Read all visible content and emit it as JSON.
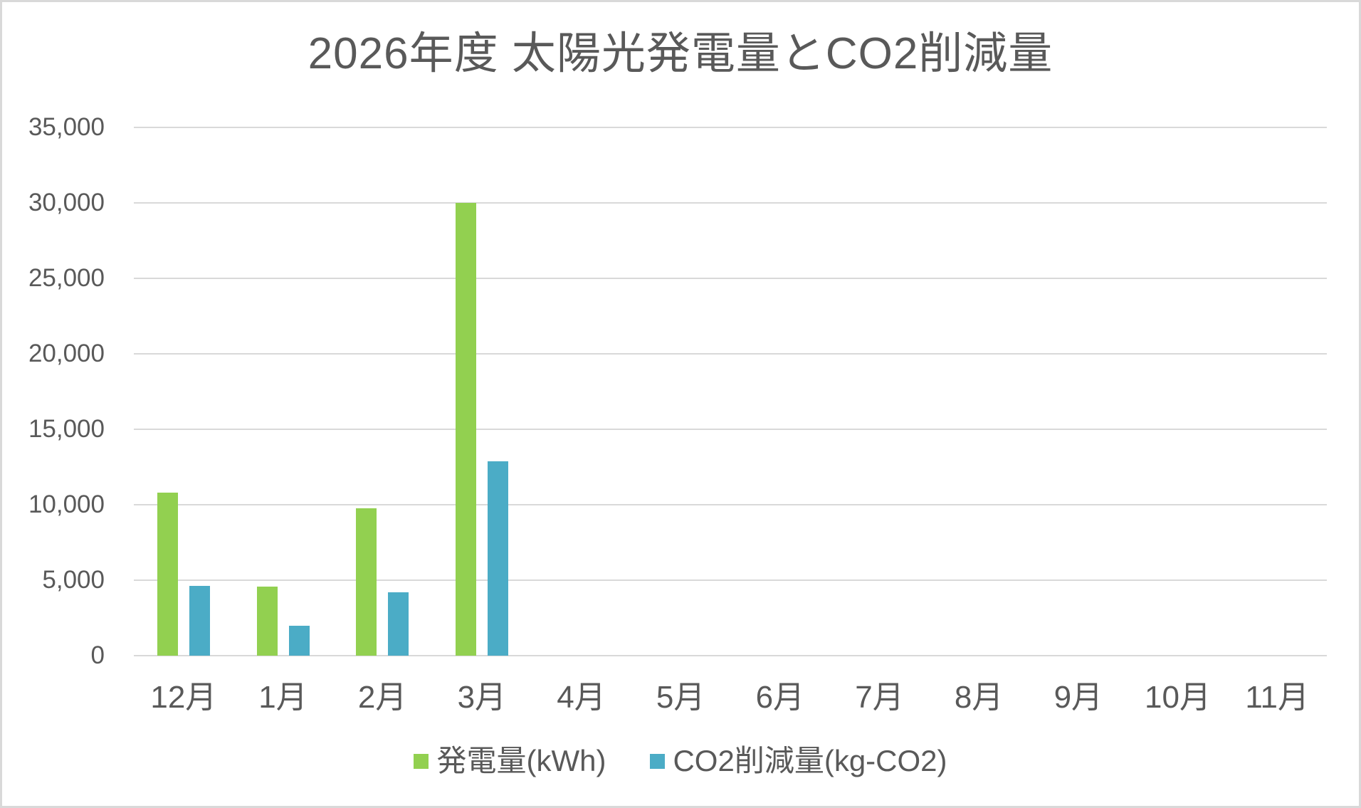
{
  "title": "2026年度 太陽光発電量とCO2削減量",
  "chart_data": {
    "type": "bar",
    "title": "2026年度 太陽光発電量とCO2削減量",
    "categories": [
      "12月",
      "1月",
      "2月",
      "3月",
      "4月",
      "5月",
      "6月",
      "7月",
      "8月",
      "9月",
      "10月",
      "11月"
    ],
    "series": [
      {
        "key": "generation",
        "name": "発電量(kWh)",
        "color": "#92D050",
        "values": [
          10800,
          4560,
          9750,
          30000,
          0,
          0,
          0,
          0,
          0,
          0,
          0,
          0
        ]
      },
      {
        "key": "co2",
        "name": "CO2削減量(kg-CO2)",
        "color": "#4BACC6",
        "values": [
          4644,
          1961,
          4193,
          12900,
          0,
          0,
          0,
          0,
          0,
          0,
          0,
          0
        ]
      }
    ],
    "xlabel": "",
    "ylabel": "",
    "ylim": [
      0,
      35000
    ],
    "ytick_step": 5000,
    "ytick_labels": [
      "0",
      "5,000",
      "10,000",
      "15,000",
      "20,000",
      "25,000",
      "30,000",
      "35,000"
    ],
    "grid": true,
    "legend_position": "bottom"
  },
  "colors": {
    "background": "#FFFFFF",
    "border": "#D9D9D9",
    "gridline": "#D9D9D9",
    "text": "#595959",
    "series_generation": "#92D050",
    "series_co2": "#4BACC6"
  }
}
